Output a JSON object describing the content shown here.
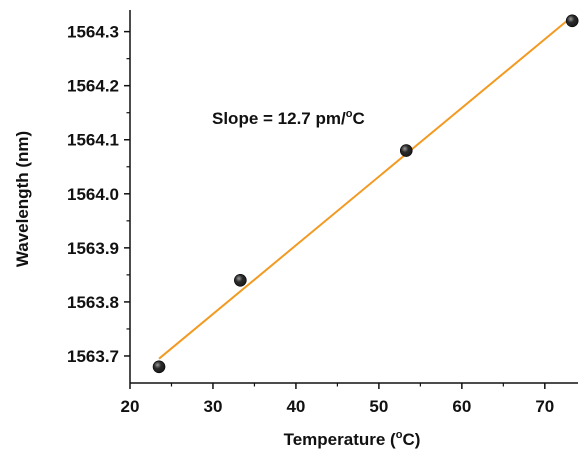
{
  "chart_data": {
    "type": "scatter",
    "title": "",
    "xlabel": "Temperature (°C)",
    "xlabel_parts": {
      "prefix": "Temperature (",
      "sup": "o",
      "suffix": "C)"
    },
    "ylabel": "Wavelength (nm)",
    "xlim": [
      20,
      74
    ],
    "ylim": [
      1563.65,
      1564.34
    ],
    "x_ticks": [
      20,
      30,
      40,
      50,
      60,
      70
    ],
    "x_tick_labels": [
      "20",
      "30",
      "40",
      "50",
      "60",
      "70"
    ],
    "y_ticks": [
      1563.7,
      1563.8,
      1563.9,
      1564.0,
      1564.1,
      1564.2,
      1564.3
    ],
    "y_tick_labels": [
      "1563.7",
      "1563.8",
      "1563.9",
      "1564.0",
      "1564.1",
      "1564.2",
      "1564.3"
    ],
    "grid": false,
    "series": [
      {
        "type": "scatter",
        "points": [
          {
            "x": 23.5,
            "y": 1563.68
          },
          {
            "x": 33.3,
            "y": 1563.84
          },
          {
            "x": 53.3,
            "y": 1564.08
          },
          {
            "x": 73.3,
            "y": 1564.32
          }
        ]
      },
      {
        "type": "line",
        "points": [
          {
            "x": 23.5,
            "y": 1563.695
          },
          {
            "x": 73.3,
            "y": 1564.328
          }
        ]
      }
    ],
    "annotation": {
      "prefix": "Slope = 12.7 pm/",
      "sup": "o",
      "suffix": "C"
    },
    "colors": {
      "fit_line": "#f39a22",
      "marker": "#1a1a1a",
      "axis": "#111111"
    }
  }
}
